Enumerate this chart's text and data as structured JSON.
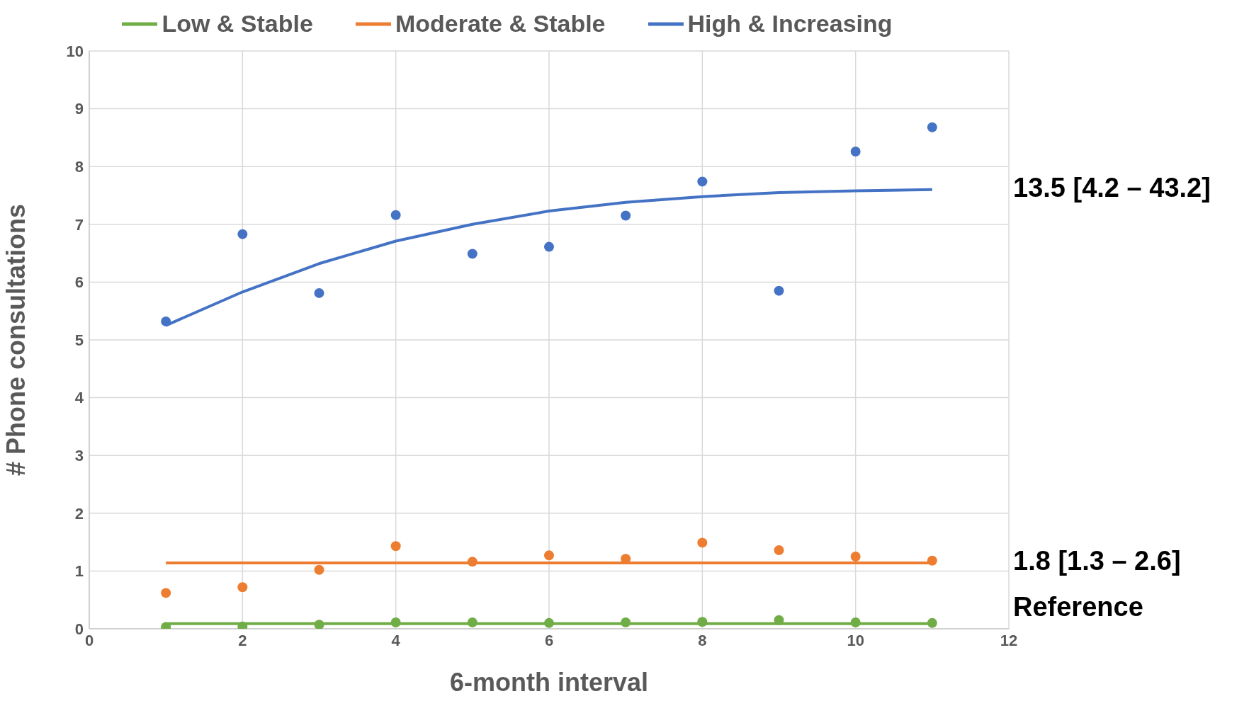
{
  "chart_data": {
    "type": "scatter",
    "xlabel": "6-month interval",
    "ylabel": "# Phone consultations",
    "x": [
      1,
      2,
      3,
      4,
      5,
      6,
      7,
      8,
      9,
      10,
      11
    ],
    "xlim": [
      0,
      12
    ],
    "xticks": [
      0,
      2,
      4,
      6,
      8,
      10,
      12
    ],
    "ylim": [
      0,
      10
    ],
    "yticks": [
      0,
      1,
      2,
      3,
      4,
      5,
      6,
      7,
      8,
      9,
      10
    ],
    "grid": true,
    "legend": "top",
    "series": [
      {
        "type": "line",
        "name": "Low & Stable",
        "color": "#70ad47",
        "marker": "none",
        "values": [
          0.09,
          0.09,
          0.09,
          0.09,
          0.09,
          0.09,
          0.09,
          0.09,
          0.09,
          0.09,
          0.09
        ]
      },
      {
        "type": "line",
        "name": "Moderate & Stable",
        "color": "#ed7d31",
        "marker": "none",
        "values": [
          1.14,
          1.14,
          1.14,
          1.14,
          1.14,
          1.14,
          1.14,
          1.14,
          1.14,
          1.14,
          1.14
        ]
      },
      {
        "type": "line",
        "name": "High & Increasing",
        "color": "#4472c4",
        "marker": "none",
        "values": [
          5.25,
          5.83,
          6.32,
          6.71,
          7.0,
          7.23,
          7.38,
          7.48,
          7.55,
          7.58,
          7.6
        ]
      },
      {
        "color": "#70ad47",
        "marker": "circle",
        "values": [
          0.03,
          0.04,
          0.07,
          0.11,
          0.11,
          0.1,
          0.11,
          0.12,
          0.15,
          0.11,
          0.1
        ]
      },
      {
        "color": "#ed7d31",
        "marker": "circle",
        "values": [
          0.62,
          0.72,
          1.02,
          1.43,
          1.16,
          1.27,
          1.21,
          1.49,
          1.36,
          1.25,
          1.18
        ]
      },
      {
        "color": "#4472c4",
        "marker": "circle",
        "values": [
          5.32,
          6.83,
          5.81,
          7.16,
          6.49,
          6.61,
          7.15,
          7.74,
          5.85,
          8.26,
          8.68
        ]
      }
    ],
    "annotations": [
      "13.5 [4.2 – 43.2]",
      "1.8 [1.3 – 2.6]",
      "Reference"
    ]
  }
}
